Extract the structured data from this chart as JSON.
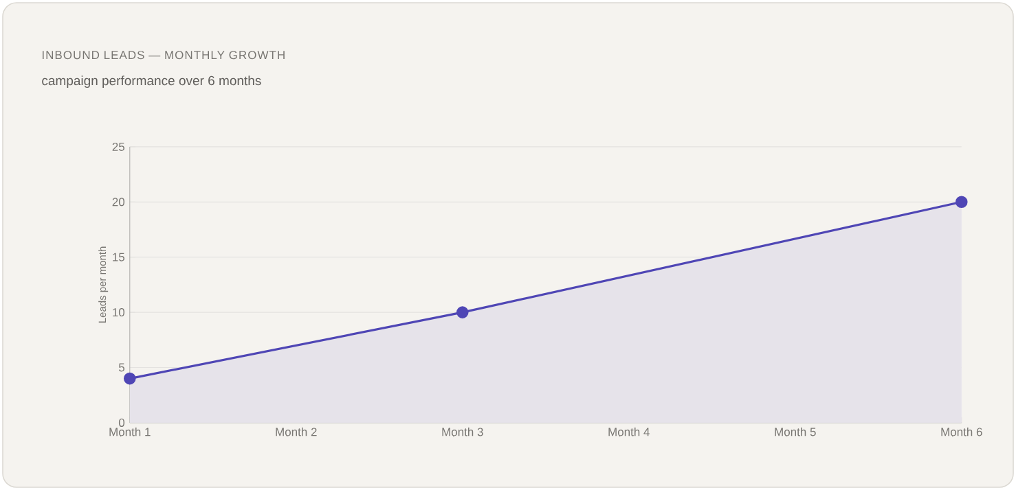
{
  "chart_data": {
    "type": "area",
    "title": "INBOUND LEADS — MONTHLY GROWTH",
    "subtitle": "campaign performance over 6 months",
    "ylabel": "Leads per month",
    "categories": [
      "Month 1",
      "Month 2",
      "Month 3",
      "Month 4",
      "Month 5",
      "Month 6"
    ],
    "series": [
      {
        "color": "#4f46b5",
        "values": [
          4,
          null,
          10,
          null,
          null,
          20
        ]
      }
    ],
    "ylim": [
      0,
      25
    ],
    "yticks": [
      0,
      5,
      10,
      15,
      20,
      25
    ],
    "grid": "y",
    "marker": "circle"
  }
}
